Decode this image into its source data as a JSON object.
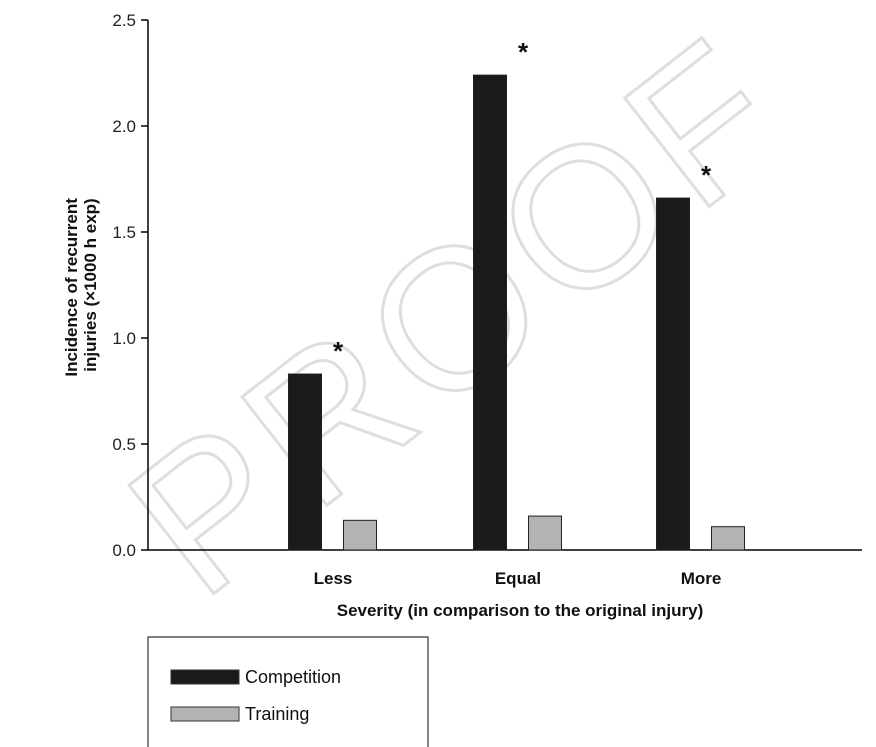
{
  "chart_data": {
    "type": "bar",
    "categories": [
      "Less",
      "Equal",
      "More"
    ],
    "series": [
      {
        "name": "Competition",
        "values": [
          0.83,
          2.24,
          1.66
        ],
        "color": "#1a1a1a"
      },
      {
        "name": "Training",
        "values": [
          0.14,
          0.16,
          0.11
        ],
        "color": "#b3b3b3"
      }
    ],
    "significance_markers": [
      "*",
      "*",
      "*"
    ],
    "xlabel": "Severity (in comparison to the original injury)",
    "ylabel_lines": [
      "Incidence of recurrent",
      "injuries (×1000 h exp)"
    ],
    "ylim": [
      0,
      2.5
    ],
    "yticks": [
      "0.0",
      "0.5",
      "1.0",
      "1.5",
      "2.0",
      "2.5"
    ],
    "grid": false,
    "legend_position": "bottom-left"
  },
  "watermark": "PROOF"
}
